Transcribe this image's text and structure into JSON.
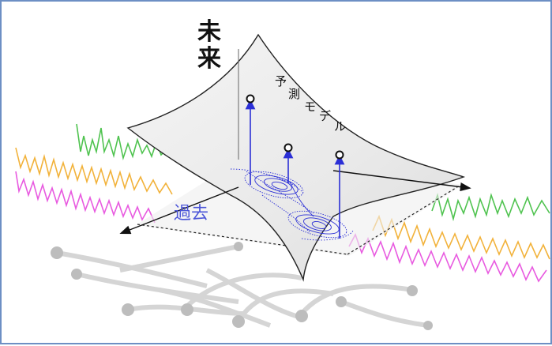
{
  "labels": {
    "future_char_1": "未",
    "future_char_2": "来",
    "model_chars": [
      "予",
      "測",
      "モ",
      "デ",
      "ル"
    ],
    "past": "過去"
  },
  "colors": {
    "frame_border": "#6d8fc4",
    "green_series": "#4fc34f",
    "orange_series": "#f2b23a",
    "magenta_series": "#e85ae0",
    "attractor": "#2b2fd6",
    "surface_stroke": "#222222",
    "shadow": "#bdbdbd"
  },
  "icons": [
    "prediction-point-icon",
    "axis-arrow-icon"
  ]
}
